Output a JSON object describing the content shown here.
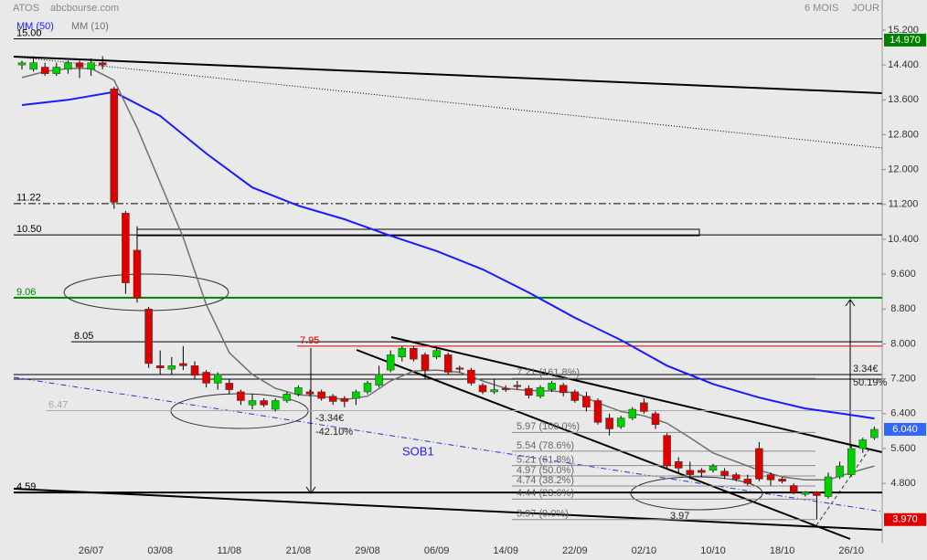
{
  "chart_data": {
    "type": "candlestick",
    "title": "ATOS",
    "subtitle": "abcbourse.com",
    "period": "6 MOIS",
    "interval": "JOUR",
    "categories": [
      null,
      null,
      null,
      null,
      null,
      null,
      "26/07",
      null,
      null,
      null,
      null,
      null,
      "03/08",
      null,
      null,
      null,
      null,
      null,
      "11/08",
      null,
      null,
      null,
      null,
      null,
      "21/08",
      null,
      null,
      null,
      null,
      null,
      "29/08",
      null,
      null,
      null,
      null,
      null,
      "06/09",
      null,
      null,
      null,
      null,
      null,
      "14/09",
      null,
      null,
      null,
      null,
      null,
      "22/09",
      null,
      null,
      null,
      null,
      null,
      "02/10",
      null,
      null,
      null,
      null,
      null,
      "10/10",
      null,
      null,
      null,
      null,
      null,
      "18/10",
      null,
      null,
      null,
      null,
      null,
      "26/10",
      null,
      null
    ],
    "open": [
      14.4,
      14.3,
      14.35,
      14.2,
      14.3,
      14.45,
      14.3,
      14.45,
      13.85,
      11.0,
      10.15,
      8.8,
      7.5,
      7.42,
      7.55,
      7.5,
      7.35,
      7.1,
      7.1,
      6.9,
      6.6,
      6.7,
      6.5,
      6.7,
      6.85,
      6.9,
      6.9,
      6.8,
      6.75,
      6.75,
      6.9,
      7.05,
      7.4,
      7.7,
      7.9,
      7.75,
      7.7,
      7.75,
      7.45,
      7.4,
      7.05,
      6.9,
      6.98,
      7.05,
      6.98,
      6.8,
      6.95,
      7.05,
      6.9,
      6.8,
      6.7,
      6.3,
      6.1,
      6.3,
      6.65,
      6.4,
      5.9,
      5.3,
      5.1,
      5.1,
      5.1,
      5.08,
      5.0,
      4.9,
      5.6,
      5.0,
      4.9,
      4.75,
      4.55,
      4.6,
      4.5,
      4.95,
      5.0,
      5.6,
      5.85
    ],
    "high": [
      14.5,
      14.6,
      14.45,
      14.45,
      14.5,
      14.5,
      14.55,
      14.6,
      13.9,
      11.05,
      10.7,
      8.85,
      7.85,
      7.7,
      7.95,
      7.6,
      7.4,
      7.35,
      7.2,
      6.95,
      6.85,
      6.75,
      6.75,
      6.9,
      7.05,
      6.95,
      6.95,
      6.85,
      6.8,
      6.95,
      7.15,
      7.5,
      7.85,
      7.95,
      7.95,
      7.8,
      7.9,
      7.8,
      7.5,
      7.45,
      7.1,
      7.2,
      7.05,
      7.15,
      7.05,
      7.05,
      7.15,
      7.1,
      6.95,
      6.9,
      6.75,
      6.4,
      6.35,
      6.55,
      6.75,
      6.45,
      5.95,
      5.4,
      5.3,
      5.15,
      5.25,
      5.15,
      5.05,
      5.0,
      5.75,
      5.05,
      4.95,
      4.8,
      4.62,
      4.62,
      5.05,
      5.3,
      5.7,
      5.85,
      6.1
    ],
    "low": [
      14.3,
      14.25,
      14.15,
      14.15,
      14.2,
      14.1,
      14.15,
      14.3,
      11.1,
      9.15,
      8.95,
      7.45,
      7.3,
      7.3,
      7.4,
      7.2,
      7.0,
      6.95,
      6.85,
      6.6,
      6.5,
      6.55,
      6.45,
      6.65,
      6.8,
      6.8,
      6.7,
      6.6,
      6.55,
      6.6,
      6.85,
      7.0,
      7.35,
      7.6,
      7.6,
      7.2,
      7.65,
      7.3,
      7.35,
      7.05,
      6.85,
      6.85,
      6.9,
      6.95,
      6.75,
      6.75,
      6.9,
      6.8,
      6.65,
      6.45,
      6.15,
      5.9,
      6.05,
      6.25,
      6.4,
      6.05,
      5.15,
      5.05,
      4.9,
      4.95,
      5.05,
      4.9,
      4.85,
      4.75,
      4.85,
      4.75,
      4.8,
      4.55,
      4.5,
      3.97,
      4.45,
      4.9,
      4.95,
      5.5,
      5.8
    ],
    "close": [
      14.45,
      14.45,
      14.2,
      14.35,
      14.45,
      14.35,
      14.45,
      14.4,
      11.25,
      9.4,
      9.05,
      7.55,
      7.45,
      7.5,
      7.5,
      7.28,
      7.1,
      7.3,
      6.95,
      6.7,
      6.7,
      6.6,
      6.7,
      6.85,
      7.0,
      6.85,
      6.75,
      6.68,
      6.68,
      6.9,
      7.1,
      7.3,
      7.75,
      7.9,
      7.65,
      7.4,
      7.85,
      7.35,
      7.42,
      7.1,
      6.9,
      6.95,
      6.95,
      7.02,
      6.82,
      7.0,
      7.1,
      6.88,
      6.7,
      6.55,
      6.2,
      6.05,
      6.3,
      6.5,
      6.45,
      6.15,
      5.2,
      5.15,
      5.0,
      5.05,
      5.2,
      4.98,
      4.9,
      4.8,
      4.9,
      4.88,
      4.85,
      4.6,
      4.6,
      4.52,
      4.95,
      5.2,
      5.6,
      5.8,
      6.04
    ],
    "up_color": "#00d000",
    "down_color": "#e00000",
    "series": [
      {
        "name": "MM (50)",
        "color": "#1a1aff",
        "x": [
          0,
          4,
          8,
          12,
          16,
          20,
          24,
          28,
          32,
          36,
          40,
          44,
          48,
          52,
          56,
          60,
          64,
          68,
          72,
          74
        ],
        "values": [
          13.48,
          13.6,
          13.78,
          13.23,
          12.37,
          11.59,
          11.17,
          10.86,
          10.48,
          10.13,
          9.71,
          9.18,
          8.6,
          8.09,
          7.5,
          7.08,
          6.77,
          6.52,
          6.37,
          6.29
        ]
      },
      {
        "name": "MM (10)",
        "color": "#707070",
        "x": [
          0,
          2,
          4,
          6,
          8,
          10,
          12,
          14,
          16,
          18,
          20,
          22,
          24,
          26,
          28,
          30,
          32,
          34,
          36,
          38,
          40,
          42,
          44,
          46,
          48,
          50,
          52,
          54,
          56,
          58,
          60,
          62,
          64,
          66,
          68,
          70,
          72,
          74
        ],
        "values": [
          14.11,
          14.25,
          14.32,
          14.32,
          14.05,
          12.96,
          11.7,
          10.44,
          8.9,
          7.8,
          7.3,
          6.98,
          6.83,
          6.8,
          6.72,
          6.8,
          7.15,
          7.38,
          7.4,
          7.35,
          7.15,
          6.98,
          6.93,
          6.92,
          6.88,
          6.65,
          6.45,
          6.35,
          6.18,
          5.85,
          5.5,
          5.3,
          5.1,
          4.95,
          4.88,
          4.88,
          5.05,
          5.2
        ]
      }
    ],
    "ylim": [
      3.42,
      15.89
    ],
    "yticks": [
      {
        "value": 15.2,
        "label": "15.200"
      },
      {
        "value": 14.4,
        "label": "14.400"
      },
      {
        "value": 13.6,
        "label": "13.600"
      },
      {
        "value": 12.8,
        "label": "12.800"
      },
      {
        "value": 12.0,
        "label": "12.000"
      },
      {
        "value": 11.2,
        "label": "11.200"
      },
      {
        "value": 10.4,
        "label": "10.400"
      },
      {
        "value": 9.6,
        "label": "9.600"
      },
      {
        "value": 8.8,
        "label": "8.800"
      },
      {
        "value": 8.0,
        "label": "8.000"
      },
      {
        "value": 7.2,
        "label": "7.200"
      },
      {
        "value": 6.4,
        "label": "6.400"
      },
      {
        "value": 5.6,
        "label": "5.600"
      },
      {
        "value": 4.8,
        "label": "4.800"
      }
    ],
    "levels": [
      {
        "value": 15.0,
        "label": "15.00",
        "color": "#000000"
      },
      {
        "value": 11.22,
        "label": "11.22",
        "color": "#000000"
      },
      {
        "value": 10.5,
        "label": "10.50",
        "color": "#000000"
      },
      {
        "value": 9.06,
        "label": "9.06",
        "color": "#008000"
      },
      {
        "value": 8.05,
        "label": "8.05",
        "color": "#000000"
      },
      {
        "value": 7.95,
        "label": "7.95",
        "color": "#e00000"
      },
      {
        "value": 6.47,
        "label": "6.47",
        "color": "#a8a8a8"
      },
      {
        "value": 4.59,
        "label": "4.59",
        "color": "#000000"
      }
    ],
    "fibonacci": [
      {
        "value": 7.21,
        "label": "7.21 (161.8%)"
      },
      {
        "value": 5.97,
        "label": "5.97 (100.0%)"
      },
      {
        "value": 5.54,
        "label": "5.54 (78.6%)"
      },
      {
        "value": 5.21,
        "label": "5.21 (61.8%)"
      },
      {
        "value": 4.97,
        "label": "4.97 (50.0%)"
      },
      {
        "value": 4.74,
        "label": "4.74 (38.2%)"
      },
      {
        "value": 4.44,
        "label": "4.44 (23.6%)"
      },
      {
        "value": 3.97,
        "label": "3.97 (0.0%)"
      }
    ],
    "price_tags": [
      {
        "value": 14.97,
        "label": "14.970",
        "color": "#008000"
      },
      {
        "value": 6.04,
        "label": "6.040",
        "color": "#3366ff"
      },
      {
        "value": 3.97,
        "label": "3.970",
        "color": "#e00000"
      }
    ],
    "annotations": [
      "-3.34€",
      "-42.10%",
      "SOB1",
      "3.34€",
      "50.19%",
      "3.97"
    ]
  }
}
